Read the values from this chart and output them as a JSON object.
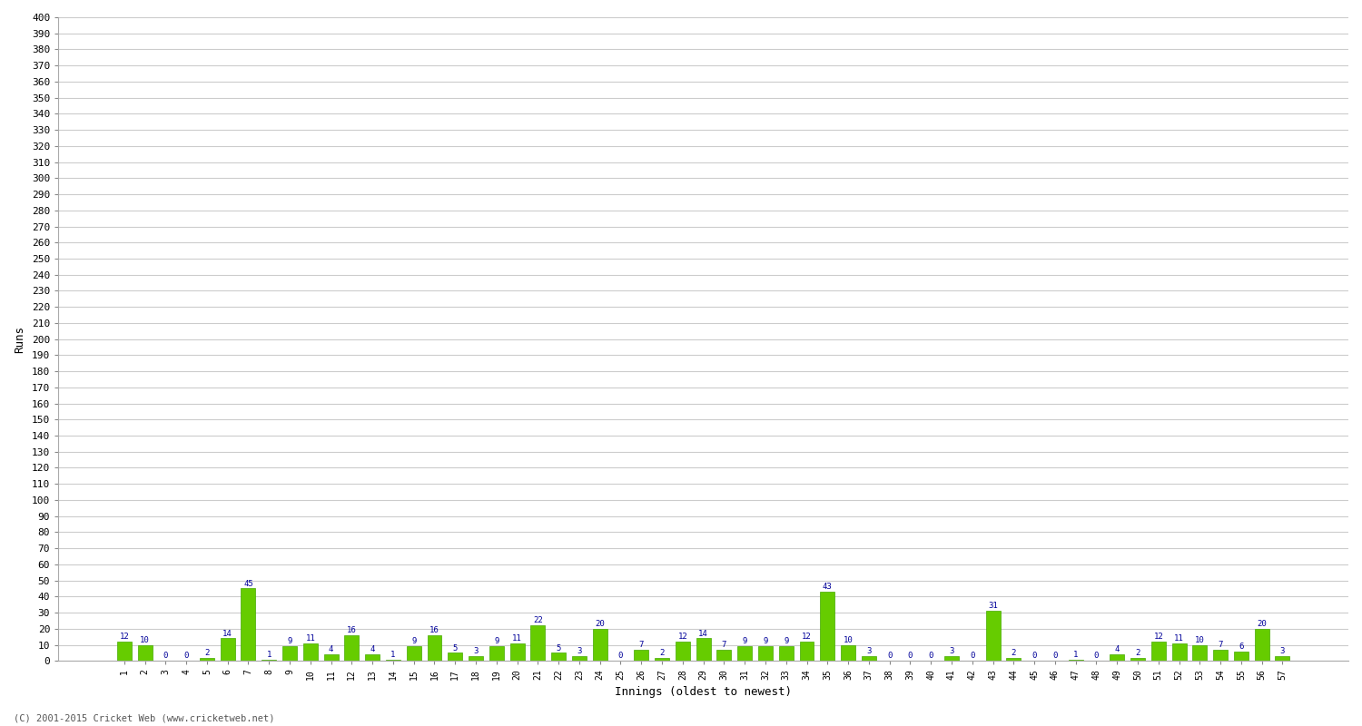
{
  "xlabel": "Innings (oldest to newest)",
  "ylabel": "Runs",
  "bar_color": "#66cc00",
  "bar_edge_color": "#44aa00",
  "label_color": "#000099",
  "background_color": "#ffffff",
  "grid_color": "#cccccc",
  "values": [
    12,
    10,
    0,
    0,
    2,
    14,
    45,
    1,
    9,
    11,
    4,
    16,
    4,
    1,
    9,
    16,
    5,
    3,
    9,
    11,
    22,
    5,
    3,
    20,
    0,
    7,
    2,
    12,
    14,
    7,
    9,
    9,
    9,
    12,
    43,
    10,
    3,
    0,
    0,
    0,
    3,
    0,
    31,
    2,
    0,
    0,
    1,
    0,
    4,
    2,
    12,
    11,
    10,
    7,
    6,
    20,
    3
  ],
  "innings": [
    1,
    2,
    3,
    4,
    5,
    6,
    7,
    8,
    9,
    10,
    11,
    12,
    13,
    14,
    15,
    16,
    17,
    18,
    19,
    20,
    21,
    22,
    23,
    24,
    25,
    26,
    27,
    28,
    29,
    30,
    31,
    32,
    33,
    34,
    35,
    36,
    37,
    38,
    39,
    40,
    41,
    42,
    43,
    44,
    45,
    46,
    47,
    48,
    49,
    50,
    51,
    52,
    53,
    54,
    55,
    56,
    57
  ],
  "ylim": [
    0,
    400
  ],
  "yticks": [
    0,
    10,
    20,
    30,
    40,
    50,
    60,
    70,
    80,
    90,
    100,
    110,
    120,
    130,
    140,
    150,
    160,
    170,
    180,
    190,
    200,
    210,
    220,
    230,
    240,
    250,
    260,
    270,
    280,
    290,
    300,
    310,
    320,
    330,
    340,
    350,
    360,
    370,
    380,
    390,
    400
  ],
  "footer": "(C) 2001-2015 Cricket Web (www.cricketweb.net)"
}
